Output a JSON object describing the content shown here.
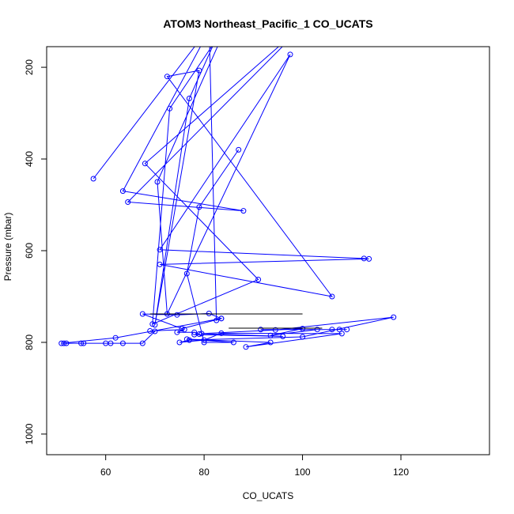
{
  "chart_data": {
    "type": "line",
    "title": "ATOM3 Northeast_Pacific_1 CO_UCATS",
    "xlabel": "CO_UCATS",
    "ylabel": "Pressure (mbar)",
    "xlim": [
      48,
      138
    ],
    "ylim": [
      1045,
      155
    ],
    "y_reversed": true,
    "xticks": [
      60,
      80,
      100,
      120
    ],
    "yticks": [
      200,
      400,
      600,
      800,
      1000
    ],
    "grid": false,
    "colors": {
      "series": "#0000ff",
      "segment": "#000000",
      "axes": "#000000"
    },
    "series": [
      {
        "x": [
          57.5,
          82,
          63.5,
          88,
          64.5,
          101,
          68,
          91,
          69.5,
          73,
          85,
          70.5,
          72.5,
          97.5,
          71,
          112.5,
          113.5,
          71,
          106,
          72.5,
          79,
          70,
          77,
          84,
          81,
          82.5,
          83.5,
          75.5,
          67.5,
          74.5,
          81,
          83.5,
          62,
          51,
          51.5,
          52,
          55,
          55.5,
          60,
          63.5,
          61,
          67.5,
          70,
          69,
          76,
          74.5,
          78,
          79,
          78,
          96,
          79.5,
          100,
          93.5,
          103,
          106,
          107.5,
          109,
          91.5,
          94.5,
          118.5,
          100,
          77,
          75,
          80,
          83.5,
          108,
          88.5,
          93.5,
          76.5,
          86,
          80,
          76.5,
          79,
          87
        ],
        "y": [
          443,
          100,
          470,
          513,
          494,
          100,
          410,
          663,
          760,
          290,
          100,
          450,
          738,
          172,
          598,
          617,
          618,
          630,
          700,
          220,
          207,
          762,
          268,
          100,
          100,
          752,
          748,
          770,
          738,
          740,
          737,
          748,
          790,
          802,
          802,
          802,
          802,
          802,
          802,
          802,
          802,
          802,
          776,
          775,
          772,
          778,
          778,
          782,
          783,
          787,
          781,
          770,
          785,
          772,
          772,
          772,
          772,
          772,
          773,
          745,
          788,
          795,
          800,
          795,
          780,
          781,
          810,
          800,
          793,
          800,
          800,
          650,
          505,
          380
        ]
      }
    ],
    "segments": [
      {
        "x": [
          69,
          100
        ],
        "y": [
          738,
          738
        ]
      },
      {
        "x": [
          85,
          104
        ],
        "y": [
          769,
          769
        ]
      }
    ]
  }
}
